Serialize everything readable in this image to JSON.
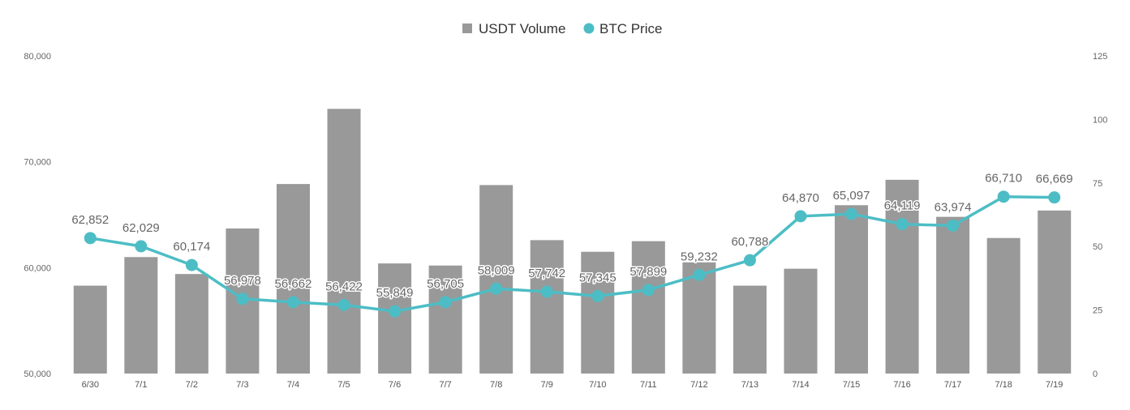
{
  "chart_data": {
    "type": "bar",
    "categories": [
      "6/30",
      "7/1",
      "7/2",
      "7/3",
      "7/4",
      "7/5",
      "7/6",
      "7/7",
      "7/8",
      "7/9",
      "7/10",
      "7/11",
      "7/12",
      "7/13",
      "7/14",
      "7/15",
      "7/16",
      "7/17",
      "7/18",
      "7/19"
    ],
    "series": [
      {
        "name": "USDT Volume",
        "type": "bar",
        "axis": "left",
        "color": "#999999",
        "values": [
          58300,
          61000,
          59400,
          63700,
          67900,
          75000,
          60400,
          60200,
          67800,
          62600,
          61500,
          62500,
          60500,
          58300,
          59900,
          65900,
          68300,
          64800,
          62800,
          65400
        ]
      },
      {
        "name": "BTC Price",
        "type": "line",
        "axis": "right",
        "color": "#4dbdc5",
        "values": [
          53.3,
          50.1,
          42.7,
          29.4,
          28.1,
          27.0,
          24.5,
          28.1,
          33.4,
          32.2,
          30.5,
          32.9,
          38.8,
          44.6,
          61.9,
          62.8,
          58.8,
          58.2,
          69.6,
          69.3
        ],
        "labels": [
          "62,852",
          "62,029",
          "60,174",
          "56,978",
          "56,662",
          "56,422",
          "55,849",
          "56,705",
          "58,009",
          "57,742",
          "57,345",
          "57,899",
          "59,232",
          "60,788",
          "64,870",
          "65,097",
          "64,119",
          "63,974",
          "66,710",
          "66,669"
        ]
      }
    ],
    "y_left": {
      "ylim": [
        50000,
        80000
      ],
      "ticks": [
        50000,
        60000,
        70000,
        80000
      ],
      "tick_labels": [
        "50,000",
        "60,000",
        "70,000",
        "80,000"
      ]
    },
    "y_right": {
      "ylim": [
        0,
        125
      ],
      "ticks": [
        0,
        25,
        50,
        75,
        100,
        125
      ],
      "tick_labels": [
        "0",
        "25",
        "50",
        "75",
        "100",
        "125"
      ]
    },
    "legend": {
      "position": "top-center",
      "items": [
        {
          "label": "USDT Volume",
          "marker": "square",
          "color": "#999999"
        },
        {
          "label": "BTC Price",
          "marker": "circle",
          "color": "#4dbdc5"
        }
      ]
    },
    "grid": false
  }
}
